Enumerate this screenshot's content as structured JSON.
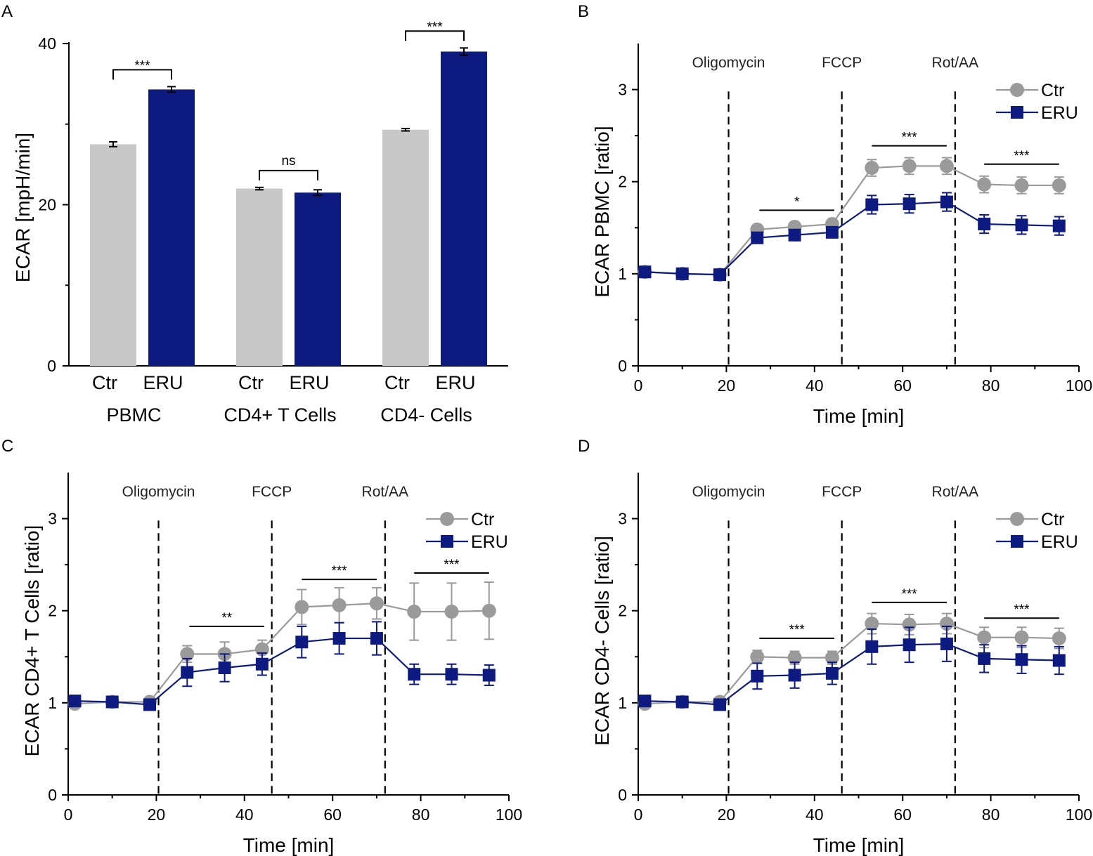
{
  "colors": {
    "ctr": "#c8c8c8",
    "ctr_line": "#9a9a9a",
    "eru": "#0d1a80",
    "axis": "#000000"
  },
  "chart_data": [
    {
      "panel": "A",
      "type": "bar",
      "ylabel": "ECAR [mpH/min]",
      "ylim": [
        0,
        40
      ],
      "yticks": [
        0,
        20,
        40
      ],
      "groups": [
        {
          "label": "PBMC",
          "bars": [
            {
              "category": "Ctr",
              "value": 27.5,
              "error": 0.3
            },
            {
              "category": "ERU",
              "value": 34.3,
              "error": 0.35
            }
          ],
          "significance": "***"
        },
        {
          "label": "CD4+ T Cells",
          "bars": [
            {
              "category": "Ctr",
              "value": 22.0,
              "error": 0.15
            },
            {
              "category": "ERU",
              "value": 21.5,
              "error": 0.35
            }
          ],
          "significance": "ns"
        },
        {
          "label": "CD4- Cells",
          "bars": [
            {
              "category": "Ctr",
              "value": 29.3,
              "error": 0.15
            },
            {
              "category": "ERU",
              "value": 39.0,
              "error": 0.45
            }
          ],
          "significance": "***"
        }
      ]
    },
    {
      "panel": "B",
      "type": "line",
      "xlabel": "Time [min]",
      "ylabel": "ECAR PBMC [ratio]",
      "xlim": [
        0,
        100
      ],
      "ylim": [
        0,
        3.5
      ],
      "xticks": [
        0,
        20,
        40,
        60,
        80,
        100
      ],
      "yticks": [
        0,
        1,
        2,
        3
      ],
      "injections": [
        {
          "label": "Oligomycin",
          "x": 20.5
        },
        {
          "label": "FCCP",
          "x": 46.2
        },
        {
          "label": "Rot/AA",
          "x": 71.9
        }
      ],
      "x": [
        1.5,
        10,
        18.5,
        27,
        35.5,
        44,
        53,
        61.5,
        70,
        78.5,
        87,
        95.5
      ],
      "series": [
        {
          "name": "Ctr",
          "values": [
            1.02,
            1.0,
            0.99,
            1.48,
            1.51,
            1.54,
            2.15,
            2.17,
            2.17,
            1.97,
            1.96,
            1.96
          ],
          "errors": [
            0.03,
            0.02,
            0.02,
            0.04,
            0.04,
            0.04,
            0.09,
            0.09,
            0.09,
            0.09,
            0.09,
            0.09
          ]
        },
        {
          "name": "ERU",
          "values": [
            1.02,
            1.0,
            0.99,
            1.39,
            1.42,
            1.45,
            1.75,
            1.76,
            1.78,
            1.54,
            1.53,
            1.52
          ],
          "errors": [
            0.03,
            0.02,
            0.02,
            0.05,
            0.05,
            0.05,
            0.1,
            0.1,
            0.1,
            0.1,
            0.1,
            0.1
          ]
        }
      ],
      "significance": [
        {
          "x1": 27.5,
          "x2": 44.5,
          "y": 1.69,
          "label": "*"
        },
        {
          "x1": 53,
          "x2": 70,
          "y": 2.39,
          "label": "***"
        },
        {
          "x1": 78.5,
          "x2": 95.5,
          "y": 2.19,
          "label": "***"
        }
      ]
    },
    {
      "panel": "C",
      "type": "line",
      "xlabel": "Time [min]",
      "ylabel": "ECAR CD4+ T Cells [ratio]",
      "xlim": [
        0,
        100
      ],
      "ylim": [
        0,
        3.5
      ],
      "xticks": [
        0,
        20,
        40,
        60,
        80,
        100
      ],
      "yticks": [
        0,
        1,
        2,
        3
      ],
      "injections": [
        {
          "label": "Oligomycin",
          "x": 20.5
        },
        {
          "label": "FCCP",
          "x": 46.2
        },
        {
          "label": "Rot/AA",
          "x": 71.9
        }
      ],
      "x": [
        1.5,
        10,
        18.5,
        27,
        35.5,
        44,
        53,
        61.5,
        70,
        78.5,
        87,
        95.5
      ],
      "series": [
        {
          "name": "Ctr",
          "values": [
            0.99,
            1.01,
            1.01,
            1.53,
            1.53,
            1.58,
            2.04,
            2.06,
            2.08,
            1.99,
            1.99,
            2.0
          ],
          "errors": [
            0.03,
            0.02,
            0.03,
            0.09,
            0.13,
            0.1,
            0.19,
            0.19,
            0.17,
            0.31,
            0.31,
            0.31
          ]
        },
        {
          "name": "ERU",
          "values": [
            1.02,
            1.01,
            0.98,
            1.33,
            1.38,
            1.42,
            1.66,
            1.7,
            1.7,
            1.31,
            1.31,
            1.3
          ],
          "errors": [
            0.03,
            0.02,
            0.03,
            0.15,
            0.15,
            0.12,
            0.17,
            0.17,
            0.18,
            0.11,
            0.11,
            0.11
          ]
        }
      ],
      "significance": [
        {
          "x1": 27.5,
          "x2": 44.5,
          "y": 1.83,
          "label": "**"
        },
        {
          "x1": 53,
          "x2": 70,
          "y": 2.34,
          "label": "***"
        },
        {
          "x1": 78.5,
          "x2": 95.5,
          "y": 2.41,
          "label": "***"
        }
      ]
    },
    {
      "panel": "D",
      "type": "line",
      "xlabel": "Time [min]",
      "ylabel": "ECAR CD4- Cells [ratio]",
      "xlim": [
        0,
        100
      ],
      "ylim": [
        0,
        3.5
      ],
      "xticks": [
        0,
        20,
        40,
        60,
        80,
        100
      ],
      "yticks": [
        0,
        1,
        2,
        3
      ],
      "injections": [
        {
          "label": "Oligomycin",
          "x": 20.5
        },
        {
          "label": "FCCP",
          "x": 46.2
        },
        {
          "label": "Rot/AA",
          "x": 71.9
        }
      ],
      "x": [
        1.5,
        10,
        18.5,
        27,
        35.5,
        44,
        53,
        61.5,
        70,
        78.5,
        87,
        95.5
      ],
      "series": [
        {
          "name": "Ctr",
          "values": [
            0.99,
            1.01,
            1.01,
            1.5,
            1.49,
            1.49,
            1.86,
            1.85,
            1.86,
            1.71,
            1.71,
            1.7
          ],
          "errors": [
            0.03,
            0.02,
            0.03,
            0.07,
            0.07,
            0.07,
            0.11,
            0.11,
            0.11,
            0.11,
            0.11,
            0.11
          ]
        },
        {
          "name": "ERU",
          "values": [
            1.02,
            1.01,
            0.98,
            1.29,
            1.3,
            1.32,
            1.61,
            1.63,
            1.64,
            1.48,
            1.47,
            1.46
          ],
          "errors": [
            0.03,
            0.02,
            0.03,
            0.14,
            0.14,
            0.12,
            0.19,
            0.19,
            0.19,
            0.15,
            0.15,
            0.15
          ]
        }
      ],
      "significance": [
        {
          "x1": 27.5,
          "x2": 44.5,
          "y": 1.7,
          "label": "***"
        },
        {
          "x1": 53,
          "x2": 70,
          "y": 2.09,
          "label": "***"
        },
        {
          "x1": 78.5,
          "x2": 95.5,
          "y": 1.92,
          "label": "***"
        }
      ]
    }
  ]
}
